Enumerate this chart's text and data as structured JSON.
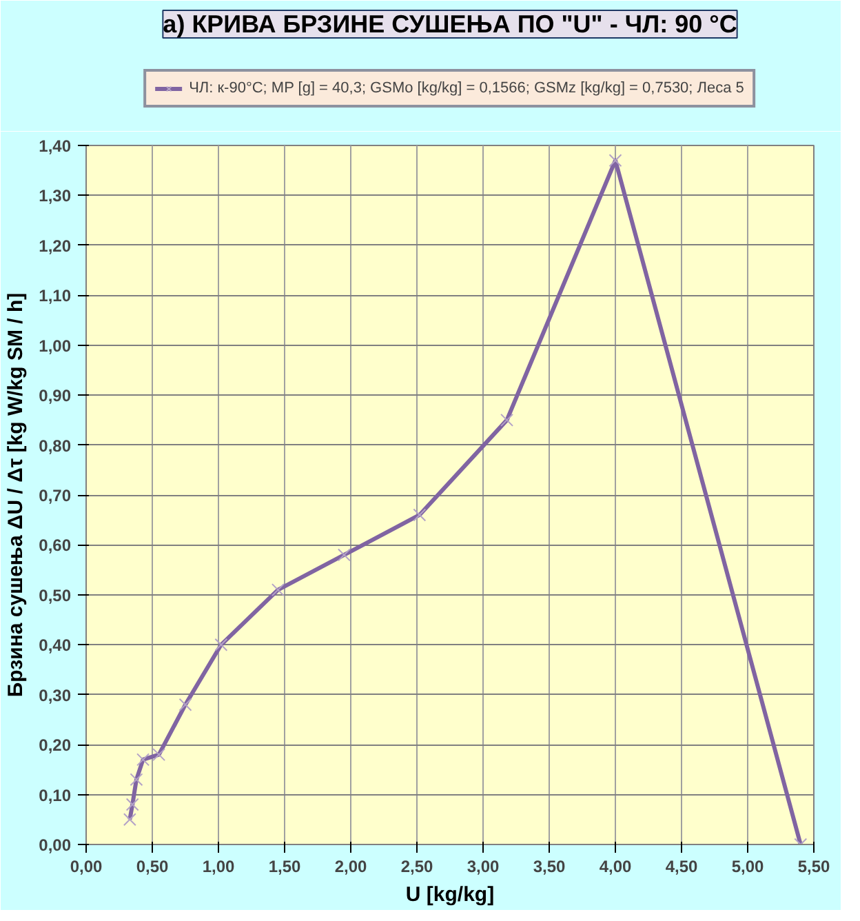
{
  "chart_data": {
    "type": "line",
    "title": "а) КРИВА БРЗИНЕ СУШЕЊА ПО \"U\" - ЧЛ: 90 °C",
    "xlabel": "U [kg/kg]",
    "ylabel": "Брзина сушења ΔU / Δτ [kg W/kg SM / h]",
    "x": [
      0.33,
      0.35,
      0.38,
      0.43,
      0.55,
      0.75,
      1.02,
      1.45,
      1.95,
      2.52,
      3.18,
      4.0,
      5.4
    ],
    "series": [
      {
        "name": "ЧЛ: к-90°C; MP [g] = 40,3; GSMo [kg/kg] = 0,1566; GSMz [kg/kg] = 0,7530; Леса 5",
        "color": "#8064a2",
        "values": [
          0.05,
          0.08,
          0.13,
          0.17,
          0.18,
          0.28,
          0.4,
          0.51,
          0.58,
          0.66,
          0.85,
          1.37,
          0.0
        ]
      }
    ],
    "xlim": [
      0,
      5.5
    ],
    "xticks": [
      {
        "value": 0,
        "label": "0,00"
      },
      {
        "value": 0.5,
        "label": "0,50"
      },
      {
        "value": 1,
        "label": "1,00"
      },
      {
        "value": 1.5,
        "label": "1,50"
      },
      {
        "value": 2,
        "label": "2,00"
      },
      {
        "value": 2.5,
        "label": "2,50"
      },
      {
        "value": 3,
        "label": "3,00"
      },
      {
        "value": 3.5,
        "label": "3,50"
      },
      {
        "value": 4,
        "label": "4,00"
      },
      {
        "value": 4.5,
        "label": "4,50"
      },
      {
        "value": 5,
        "label": "5,00"
      },
      {
        "value": 5.5,
        "label": "5,50"
      }
    ],
    "ylim": [
      0,
      1.4
    ],
    "yticks": [
      {
        "value": 0,
        "label": "0,00"
      },
      {
        "value": 0.1,
        "label": "0,10"
      },
      {
        "value": 0.2,
        "label": "0,20"
      },
      {
        "value": 0.3,
        "label": "0,30"
      },
      {
        "value": 0.4,
        "label": "0,40"
      },
      {
        "value": 0.5,
        "label": "0,50"
      },
      {
        "value": 0.6,
        "label": "0,60"
      },
      {
        "value": 0.7,
        "label": "0,70"
      },
      {
        "value": 0.8,
        "label": "0,80"
      },
      {
        "value": 0.9,
        "label": "0,90"
      },
      {
        "value": 1.0,
        "label": "1,00"
      },
      {
        "value": 1.1,
        "label": "1,10"
      },
      {
        "value": 1.2,
        "label": "1,20"
      },
      {
        "value": 1.3,
        "label": "1,30"
      },
      {
        "value": 1.4,
        "label": "1,40"
      }
    ],
    "grid": true,
    "legend": "top",
    "marker": "cross",
    "line_style": "solid"
  }
}
